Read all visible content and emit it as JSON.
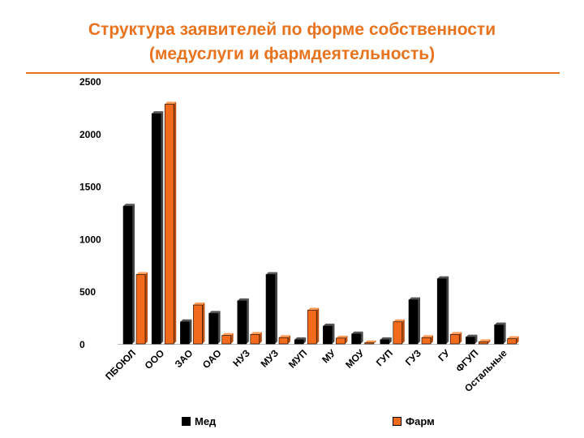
{
  "chart_data": {
    "type": "bar",
    "title": [
      "Структура заявителей по форме собственности",
      "(медуслуги и  фармдеятельность)"
    ],
    "categories": [
      "ПБОЮЛ",
      "ООО",
      "ЗАО",
      "ОАО",
      "НУЗ",
      "МУЗ",
      "МУП",
      "МУ",
      "МОУ",
      "ГУП",
      "ГУЗ",
      "ГУ",
      "ФГУП",
      "Остальные"
    ],
    "series": [
      {
        "name": "Мед",
        "color": "#000000",
        "values": [
          1310,
          2190,
          210,
          290,
          410,
          660,
          40,
          170,
          95,
          40,
          420,
          620,
          65,
          180
        ]
      },
      {
        "name": "Фарм",
        "color": "#f26a1b",
        "values": [
          660,
          2280,
          370,
          80,
          90,
          60,
          320,
          55,
          10,
          210,
          60,
          90,
          20,
          50
        ]
      }
    ],
    "yticks": [
      "0",
      "500",
      "1000",
      "1500",
      "2000",
      "2500"
    ],
    "ylim": [
      0,
      2500
    ],
    "grid": false,
    "legend_position": "bottom"
  }
}
